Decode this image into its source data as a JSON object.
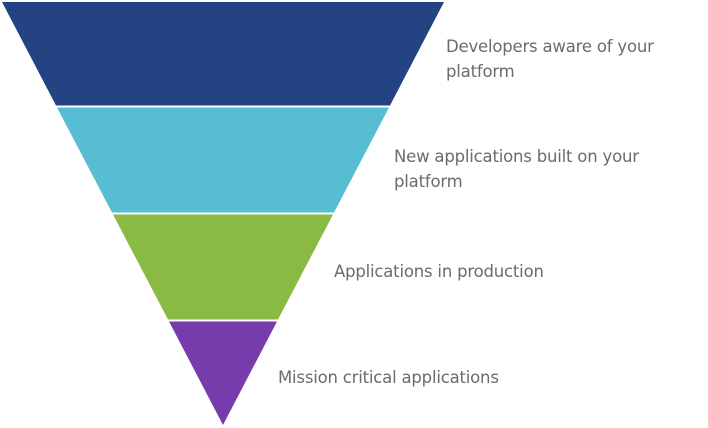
{
  "funnel": {
    "stages": [
      {
        "label_lines": [
          "Developers aware of your",
          "platform"
        ],
        "color": "#234383"
      },
      {
        "label_lines": [
          "New applications built on your",
          "platform"
        ],
        "color": "#56bdd3"
      },
      {
        "label_lines": [
          "Applications in production"
        ],
        "color": "#8aba44"
      },
      {
        "label_lines": [
          "Mission critical applications"
        ],
        "color": "#773cab"
      }
    ],
    "text_color": "#6b6b6b"
  }
}
